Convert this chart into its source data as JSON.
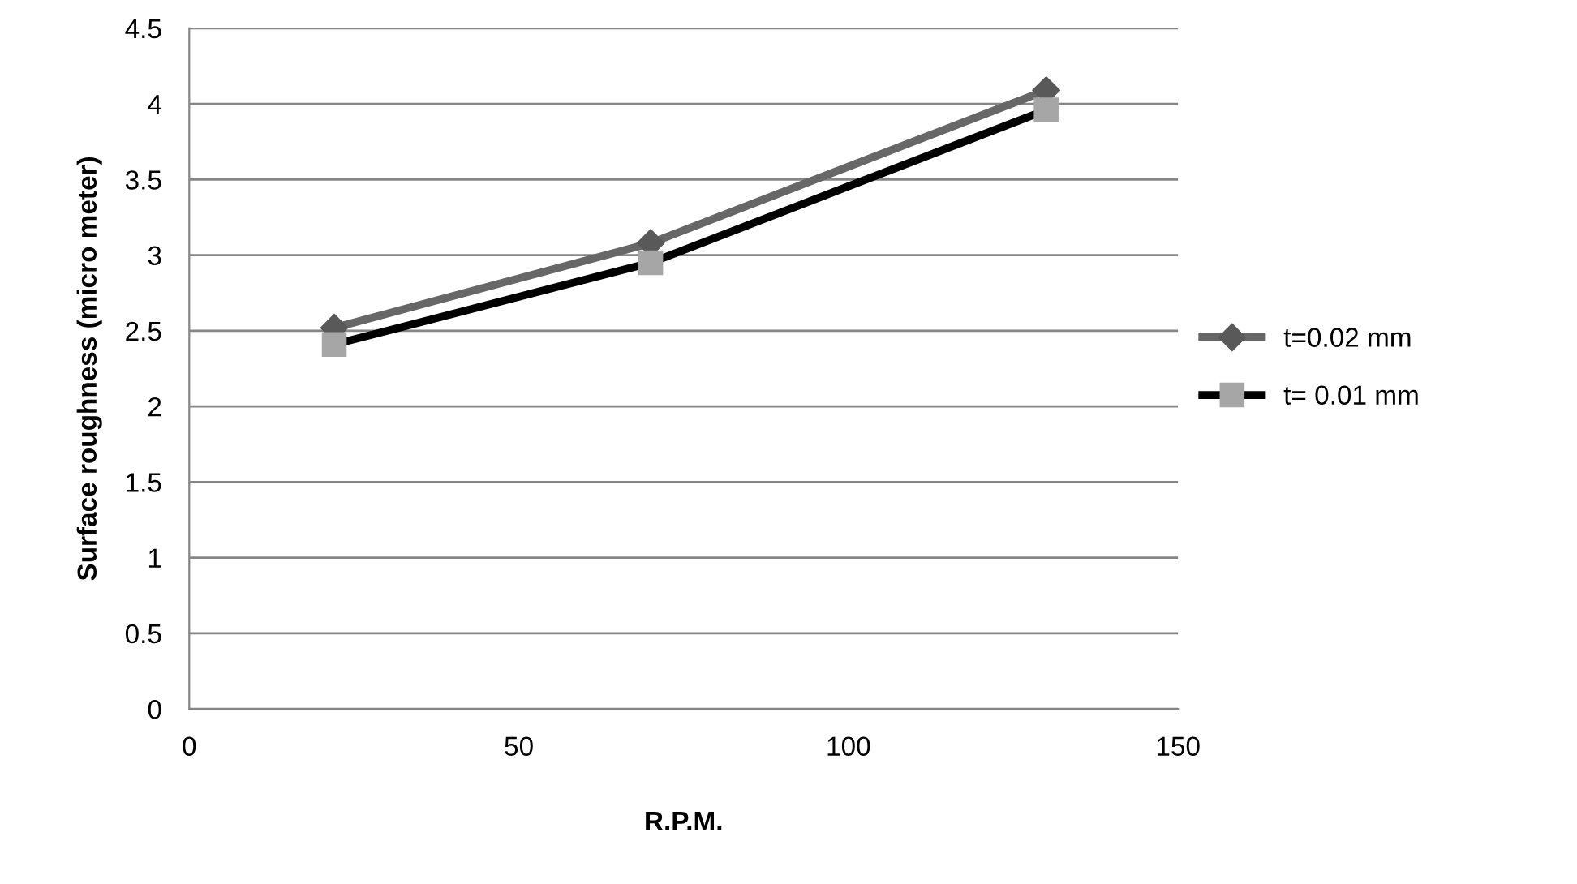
{
  "chart_data": {
    "type": "line",
    "xlabel": "R.P.M.",
    "ylabel": "Surface roughness (micro meter)",
    "x": [
      22,
      70,
      130
    ],
    "series": [
      {
        "name": "t=0.02 mm",
        "color": "#676767",
        "marker": "diamond",
        "values": [
          2.52,
          3.08,
          4.09
        ]
      },
      {
        "name": "t= 0.01 mm",
        "color": "#000000",
        "marker": "square",
        "values": [
          2.41,
          2.95,
          3.96
        ]
      }
    ],
    "xlim": [
      0,
      150
    ],
    "xticks": [
      0,
      50,
      100,
      150
    ],
    "ylim": [
      0,
      4.5
    ],
    "yticks": [
      0,
      0.5,
      1,
      1.5,
      2,
      2.5,
      3,
      3.5,
      4,
      4.5
    ],
    "grid": "y",
    "legend": "right",
    "line_style": "solid"
  }
}
